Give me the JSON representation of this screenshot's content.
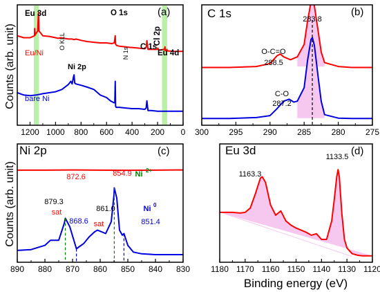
{
  "figure": {
    "ylabel": "Counts (arb. unit)",
    "xlabel": "Binding energy (eV)"
  },
  "colors": {
    "red": "#ff0000",
    "blue": "#0000e0",
    "black": "#000000",
    "green": "#008000",
    "band": "#b8f0a8",
    "fill": "#f6c8f0"
  },
  "chart_data": [
    {
      "panel": "(a)",
      "type": "line",
      "xlim": [
        1300,
        0
      ],
      "xticks": [
        1200,
        1000,
        800,
        600,
        400,
        200,
        0
      ],
      "series": [
        {
          "name": "Eu/Ni",
          "color": "#ff0000",
          "x": [
            1300,
            1250,
            1200,
            1165,
            1163.3,
            1160,
            1140,
            1133.5,
            1130,
            1100,
            1050,
            1000,
            980,
            960,
            900,
            870,
            854.9,
            840,
            800,
            750,
            700,
            650,
            600,
            560,
            540,
            532,
            529,
            520,
            500,
            450,
            410,
            400,
            350,
            300,
            290,
            284,
            275,
            250,
            200,
            199,
            190,
            180,
            150,
            144,
            142,
            140,
            130,
            128,
            120,
            100,
            80,
            60,
            40,
            20,
            0
          ],
          "y": [
            0.2,
            0.14,
            0.14,
            0.2,
            0.42,
            0.22,
            0.35,
            0.92,
            0.35,
            0.2,
            0.18,
            0.14,
            0.12,
            0.14,
            0.1,
            0.1,
            0.08,
            0.1,
            0.06,
            0.02,
            0.0,
            -0.02,
            -0.02,
            -0.04,
            -0.02,
            0.2,
            -0.06,
            -0.1,
            -0.12,
            -0.14,
            -0.16,
            -0.16,
            -0.18,
            -0.2,
            -0.16,
            0.05,
            -0.22,
            -0.22,
            -0.22,
            -0.18,
            -0.24,
            -0.24,
            -0.22,
            -0.2,
            -0.14,
            -0.26,
            -0.26,
            -0.22,
            -0.27,
            -0.27,
            -0.28,
            -0.28,
            -0.28,
            -0.28,
            -0.28
          ]
        },
        {
          "name": "bare Ni",
          "color": "#0000e0",
          "x": [
            1300,
            1250,
            1200,
            1150,
            1100,
            1050,
            1000,
            950,
            900,
            880,
            870,
            860,
            855,
            850,
            840,
            800,
            750,
            700,
            650,
            600,
            570,
            540,
            535,
            532,
            529,
            525,
            500,
            450,
            400,
            350,
            300,
            290,
            284,
            275,
            250,
            200,
            150,
            100,
            50,
            0
          ],
          "y": [
            -1.55,
            -1.62,
            -1.64,
            -1.62,
            -1.58,
            -1.55,
            -1.52,
            -1.45,
            -1.3,
            -1.2,
            -1.28,
            -1.08,
            -1.0,
            -1.25,
            -1.28,
            -1.32,
            -1.38,
            -1.45,
            -1.62,
            -1.7,
            -1.8,
            -1.86,
            -1.84,
            -1.2,
            -1.96,
            -2.0,
            -2.0,
            -2.02,
            -2.04,
            -2.04,
            -2.06,
            -2.02,
            -1.8,
            -2.1,
            -2.1,
            -2.12,
            -2.12,
            -2.12,
            -2.12,
            -2.12
          ]
        }
      ],
      "labels": [
        {
          "text": "(a)"
        },
        {
          "text": "Eu 3d"
        },
        {
          "text": "O KLL"
        },
        {
          "text": "O 1s"
        },
        {
          "text": "N 1s"
        },
        {
          "text": "C 1s"
        },
        {
          "text": "Cl 2p"
        },
        {
          "text": "Eu 4d"
        },
        {
          "text": "Ni 2p"
        },
        {
          "text": "Eu/Ni"
        },
        {
          "text": "bare Ni"
        }
      ],
      "highlight_bands": [
        [
          1170,
          1130
        ],
        [
          165,
          125
        ]
      ]
    },
    {
      "panel": "(b)",
      "type": "line",
      "xlim": [
        300,
        275
      ],
      "xticks": [
        300,
        295,
        290,
        285,
        280,
        275
      ],
      "series": [
        {
          "name": "red",
          "color": "#ff0000",
          "x": [
            300,
            296,
            292,
            290,
            289,
            288.5,
            288,
            287,
            286,
            285,
            284.5,
            284,
            283.8,
            283.5,
            283,
            282.5,
            282,
            280,
            278,
            275
          ],
          "y": [
            0.0,
            0.0,
            0.05,
            0.2,
            0.6,
            0.7,
            0.55,
            0.4,
            0.55,
            1.2,
            2.4,
            3.4,
            3.5,
            3.2,
            2.0,
            0.8,
            0.25,
            0.05,
            0.0,
            0.0
          ]
        },
        {
          "name": "blue",
          "color": "#0000e0",
          "x": [
            300,
            296,
            292,
            290,
            289,
            288,
            287.2,
            286.5,
            286,
            285,
            284.5,
            284,
            283.8,
            283.5,
            283,
            282.5,
            282,
            280,
            278,
            275
          ],
          "y": [
            0.0,
            0.0,
            0.05,
            0.15,
            0.5,
            0.9,
            1.0,
            0.85,
            0.9,
            1.6,
            3.0,
            4.1,
            4.2,
            3.8,
            2.3,
            0.9,
            0.2,
            0.02,
            0.0,
            0.0
          ]
        }
      ],
      "labels": [
        {
          "text": "C 1s"
        },
        {
          "text": "(b)"
        },
        {
          "text": "283.8"
        },
        {
          "text": "O-C=O"
        },
        {
          "text": "288.5"
        },
        {
          "text": "C-O"
        },
        {
          "text": "287.2"
        }
      ],
      "guide_lines_x": [
        283.8
      ]
    },
    {
      "panel": "(c)",
      "type": "line",
      "xlim": [
        890,
        830
      ],
      "xticks": [
        890,
        880,
        870,
        860,
        850,
        840,
        830
      ],
      "series": [
        {
          "name": "red",
          "color": "#ff0000",
          "x": [
            890,
            880,
            870,
            860,
            850,
            840,
            830
          ],
          "y": [
            5.05,
            5.05,
            5.06,
            5.05,
            5.04,
            5.05,
            5.06
          ]
        },
        {
          "name": "blue",
          "color": "#0000e0",
          "x": [
            890,
            885,
            880,
            878,
            875,
            873,
            872.6,
            871,
            868.6,
            866,
            864,
            862,
            861,
            858,
            856,
            855,
            854.9,
            854,
            853,
            852,
            851.4,
            850,
            848,
            845,
            840,
            835,
            830
          ],
          "y": [
            0.3,
            0.35,
            0.6,
            0.9,
            0.9,
            1.9,
            2.2,
            1.7,
            0.4,
            0.7,
            1.1,
            1.4,
            1.5,
            1.3,
            2.0,
            3.6,
            4.0,
            3.4,
            1.5,
            1.2,
            1.3,
            0.6,
            0.2,
            0.1,
            0.05,
            0.05,
            0.05
          ]
        }
      ],
      "labels": [
        {
          "text": "Ni 2p"
        },
        {
          "text": "(c)"
        },
        {
          "text": "854.9"
        },
        {
          "text": "Ni"
        },
        {
          "text": "2+"
        },
        {
          "text": "872.6"
        },
        {
          "text": "879.3"
        },
        {
          "text": "sat"
        },
        {
          "text": "868.6"
        },
        {
          "text": "861.0"
        },
        {
          "text": "sat"
        },
        {
          "text": "Ni"
        },
        {
          "text": "0"
        },
        {
          "text": "851.4"
        }
      ],
      "guide_lines_x": [
        872.6,
        868.6,
        854.9,
        851.4
      ]
    },
    {
      "panel": "(d)",
      "type": "line",
      "xlim": [
        1180,
        1120
      ],
      "xticks": [
        1180,
        1170,
        1160,
        1150,
        1140,
        1130,
        1120
      ],
      "series": [
        {
          "name": "red",
          "color": "#ff0000",
          "x": [
            1180,
            1175,
            1172,
            1170,
            1168,
            1166,
            1164,
            1163.3,
            1162,
            1160,
            1158,
            1156,
            1154,
            1152,
            1150,
            1146,
            1144,
            1142,
            1140,
            1138,
            1136,
            1135,
            1134,
            1133.5,
            1133,
            1132,
            1131,
            1130,
            1128,
            1126,
            1124,
            1122,
            1120
          ],
          "y": [
            3.1,
            3.1,
            3.05,
            3.1,
            3.4,
            4.4,
            5.5,
            5.6,
            5.2,
            3.6,
            2.9,
            3.2,
            2.5,
            2.2,
            2.0,
            1.7,
            1.5,
            1.6,
            1.2,
            1.2,
            2.5,
            4.0,
            5.6,
            6.1,
            5.6,
            3.0,
            1.2,
            0.6,
            0.2,
            0.1,
            0.05,
            0.05,
            0.05
          ]
        }
      ],
      "labels": [
        {
          "text": "Eu 3d"
        },
        {
          "text": "(d)"
        },
        {
          "text": "1163.3"
        },
        {
          "text": "1133.5"
        }
      ]
    }
  ]
}
